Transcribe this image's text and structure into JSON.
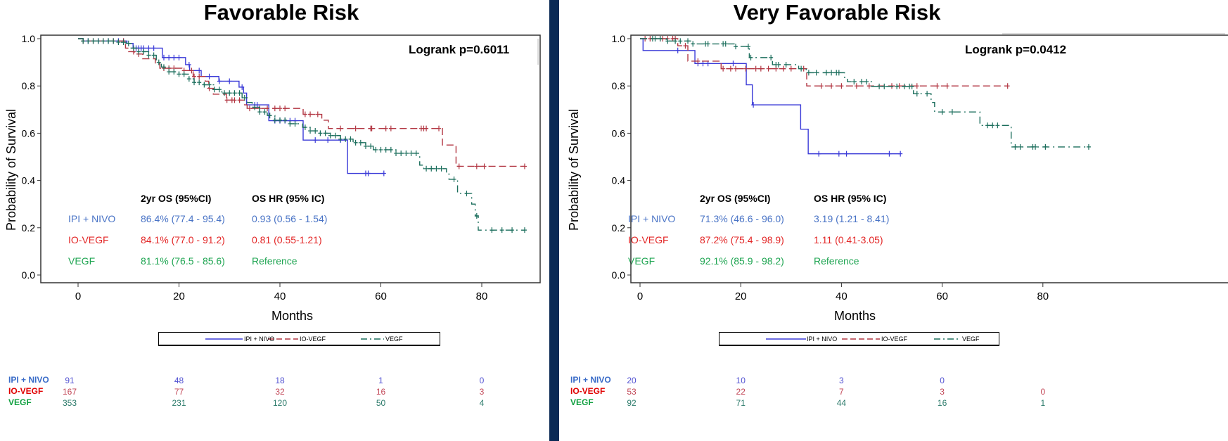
{
  "colors": {
    "divider": "#0b2a55",
    "ipi_curve": "#3b3bd8",
    "io_curve": "#b23642",
    "vegf_curve": "#1b6e5c",
    "ipi_text": "#4a74c6",
    "io_text": "#e32626",
    "vegf_text": "#1fa552",
    "ipi_risk": "#5252d2",
    "io_risk": "#c24656",
    "vegf_risk": "#2b7a6a",
    "ipi_label": "#3a6cc8",
    "io_label": "#e00000",
    "vegf_label": "#10a040"
  },
  "chart_data": [
    {
      "type": "line",
      "subtype": "kaplan-meier",
      "title": "Favorable Risk",
      "xlabel": "Months",
      "ylabel": "Probability of Survival",
      "xlim": [
        0,
        90
      ],
      "ylim": [
        0,
        1
      ],
      "xticks": [
        "0",
        "20",
        "40",
        "60",
        "80"
      ],
      "yticks": [
        "0.0",
        "0.2",
        "0.4",
        "0.6",
        "0.8",
        "1.0"
      ],
      "grid": false,
      "logrank": "Logrank p=0.6011",
      "legend_position": "bottom",
      "series": [
        {
          "name": "IPI + NIVO",
          "style": "solid",
          "end": 60.6,
          "steps": [
            [
              0,
              1.0
            ],
            [
              1,
              0.99
            ],
            [
              9.7,
              0.98
            ],
            [
              10.9,
              0.96
            ],
            [
              16.7,
              0.92
            ],
            [
              21.3,
              0.89
            ],
            [
              22.1,
              0.865
            ],
            [
              24.4,
              0.84
            ],
            [
              27.9,
              0.82
            ],
            [
              31.9,
              0.795
            ],
            [
              32.8,
              0.77
            ],
            [
              33.4,
              0.72
            ],
            [
              37.8,
              0.653
            ],
            [
              44.6,
              0.571
            ],
            [
              53.4,
              0.43
            ]
          ],
          "censors": [
            2,
            4,
            6,
            8,
            9,
            11.5,
            12,
            12.5,
            13,
            14,
            15,
            17,
            18,
            19,
            20,
            22,
            24,
            26,
            28,
            30,
            32.5,
            35,
            35.5,
            39,
            40,
            41,
            42,
            43,
            47,
            49.5,
            52,
            57,
            57.5,
            60.6
          ]
        },
        {
          "name": "IO-VEGF",
          "style": "dashed",
          "end": 88.5,
          "steps": [
            [
              0,
              1.0
            ],
            [
              1,
              0.99
            ],
            [
              9.4,
              0.96
            ],
            [
              10,
              0.945
            ],
            [
              11.2,
              0.935
            ],
            [
              12.8,
              0.915
            ],
            [
              15.3,
              0.895
            ],
            [
              16.2,
              0.875
            ],
            [
              20.6,
              0.865
            ],
            [
              22.8,
              0.84
            ],
            [
              25.2,
              0.82
            ],
            [
              25.9,
              0.79
            ],
            [
              26.8,
              0.765
            ],
            [
              29.4,
              0.74
            ],
            [
              33,
              0.72
            ],
            [
              33.5,
              0.705
            ],
            [
              44.6,
              0.68
            ],
            [
              48.3,
              0.655
            ],
            [
              49.6,
              0.62
            ],
            [
              72.2,
              0.55
            ],
            [
              74.9,
              0.46
            ]
          ],
          "censors": [
            1,
            3,
            5,
            7,
            9,
            11,
            12,
            17,
            18,
            19,
            21,
            22.5,
            23,
            24,
            26,
            29.5,
            30.5,
            31,
            32,
            34,
            36,
            37.5,
            39,
            40,
            41,
            45,
            46,
            47.5,
            52,
            55,
            58,
            58.2,
            61,
            62,
            68,
            68.5,
            69,
            71.5,
            75.5,
            79,
            80.5,
            88.5
          ]
        },
        {
          "name": "VEGF",
          "style": "dashdot",
          "end": 88.5,
          "steps": [
            [
              0,
              1.0
            ],
            [
              1,
              0.99
            ],
            [
              8,
              0.985
            ],
            [
              9.5,
              0.98
            ],
            [
              10.5,
              0.96
            ],
            [
              12,
              0.945
            ],
            [
              14,
              0.93
            ],
            [
              15.5,
              0.9
            ],
            [
              16.5,
              0.88
            ],
            [
              18,
              0.86
            ],
            [
              20,
              0.85
            ],
            [
              22,
              0.83
            ],
            [
              23,
              0.815
            ],
            [
              25,
              0.805
            ],
            [
              27,
              0.785
            ],
            [
              28.5,
              0.77
            ],
            [
              32.5,
              0.75
            ],
            [
              33.5,
              0.73
            ],
            [
              34.5,
              0.71
            ],
            [
              36,
              0.69
            ],
            [
              37.5,
              0.675
            ],
            [
              39,
              0.655
            ],
            [
              42,
              0.64
            ],
            [
              44.5,
              0.625
            ],
            [
              46,
              0.61
            ],
            [
              48,
              0.6
            ],
            [
              50,
              0.59
            ],
            [
              52,
              0.575
            ],
            [
              54.5,
              0.56
            ],
            [
              57,
              0.545
            ],
            [
              58.5,
              0.53
            ],
            [
              63,
              0.515
            ],
            [
              67.7,
              0.465
            ],
            [
              68.5,
              0.45
            ],
            [
              73,
              0.43
            ],
            [
              73.5,
              0.405
            ],
            [
              75.2,
              0.345
            ],
            [
              78,
              0.3
            ],
            [
              78.7,
              0.25
            ],
            [
              79.3,
              0.19
            ]
          ],
          "censors": [
            1,
            2,
            3,
            4,
            5,
            6,
            7,
            8,
            9,
            10,
            11,
            12,
            13,
            14,
            15,
            16,
            17,
            18,
            19,
            20,
            21,
            22,
            23,
            24,
            25,
            26,
            27,
            28,
            29,
            30,
            31,
            32,
            33,
            35,
            36,
            37,
            38,
            39,
            40,
            41,
            42,
            43,
            45,
            46,
            47,
            48,
            49,
            50,
            51,
            52,
            53,
            54,
            55,
            56,
            57,
            58,
            59,
            60,
            61,
            62,
            63,
            64,
            65,
            66,
            67,
            69,
            70,
            71,
            72,
            74.5,
            77,
            79,
            82,
            84,
            86,
            88.5
          ]
        }
      ],
      "stats": {
        "headers": [
          "2yr OS (95%CI)",
          "OS HR (95% IC)"
        ],
        "rows": [
          {
            "label": "IPI + NIVO",
            "os": "86.4% (77.4 - 95.4)",
            "hr": "0.93 (0.56 - 1.54)"
          },
          {
            "label": "IO-VEGF",
            "os": "84.1% (77.0 - 91.2)",
            "hr": "0.81 (0.55-1.21)"
          },
          {
            "label": "VEGF",
            "os": "81.1% (76.5 - 85.6)",
            "hr": "Reference"
          }
        ]
      },
      "risk_table": [
        {
          "label": "IPI + NIVO",
          "values": [
            "91",
            "48",
            "18",
            "1",
            "0"
          ]
        },
        {
          "label": "IO-VEGF",
          "values": [
            "167",
            "77",
            "32",
            "16",
            "3"
          ]
        },
        {
          "label": "VEGF",
          "values": [
            "353",
            "231",
            "120",
            "50",
            "4"
          ]
        }
      ]
    },
    {
      "type": "line",
      "subtype": "kaplan-meier",
      "title": "Very Favorable Risk",
      "xlabel": "Months",
      "ylabel": "Probability of Survival",
      "xlim": [
        0,
        90
      ],
      "ylim": [
        0,
        1
      ],
      "xticks": [
        "0",
        "20",
        "40",
        "60",
        "80"
      ],
      "yticks": [
        "0.0",
        "0.2",
        "0.4",
        "0.6",
        "0.8",
        "1.0"
      ],
      "grid": false,
      "logrank": "Logrank p=0.0412",
      "legend_position": "bottom",
      "series": [
        {
          "name": "IPI + NIVO",
          "style": "solid",
          "end": 51.7,
          "steps": [
            [
              0,
              1.0
            ],
            [
              0.6,
              0.95
            ],
            [
              10.9,
              0.895
            ],
            [
              21.1,
              0.805
            ],
            [
              22.3,
              0.72
            ],
            [
              31.9,
              0.617
            ],
            [
              33.4,
              0.513
            ]
          ],
          "censors": [
            7.5,
            11.5,
            12.5,
            13.5,
            18.5,
            22.5,
            35.5,
            39.5,
            41,
            49.5,
            51.7
          ]
        },
        {
          "name": "IO-VEGF",
          "style": "dashed",
          "end": 73,
          "steps": [
            [
              0,
              1.0
            ],
            [
              7.5,
              0.97
            ],
            [
              9.5,
              0.905
            ],
            [
              16.1,
              0.873
            ],
            [
              33.1,
              0.8
            ]
          ],
          "censors": [
            1,
            2,
            4,
            4.5,
            5.5,
            6.5,
            7,
            9,
            11.5,
            16.5,
            18,
            19,
            21,
            23,
            24,
            25.5,
            27,
            28.5,
            30,
            32.5,
            36,
            38,
            40,
            43,
            45.5,
            50,
            51.5,
            55,
            59,
            61,
            73
          ]
        },
        {
          "name": "VEGF",
          "style": "dashdot",
          "end": 89.1,
          "steps": [
            [
              0,
              1.0
            ],
            [
              5.2,
              0.99
            ],
            [
              10.4,
              0.978
            ],
            [
              18.8,
              0.967
            ],
            [
              21.7,
              0.92
            ],
            [
              26.3,
              0.89
            ],
            [
              31.5,
              0.873
            ],
            [
              33,
              0.856
            ],
            [
              40.6,
              0.836
            ],
            [
              41.2,
              0.818
            ],
            [
              46,
              0.798
            ],
            [
              54.3,
              0.767
            ],
            [
              57.8,
              0.73
            ],
            [
              58.5,
              0.69
            ],
            [
              67.5,
              0.633
            ],
            [
              73.7,
              0.542
            ]
          ],
          "censors": [
            2.5,
            3,
            4,
            5.5,
            7,
            8,
            9.5,
            10.5,
            13,
            13.5,
            16.5,
            17,
            19,
            21.5,
            22,
            26,
            27,
            27.5,
            29,
            32,
            33.5,
            35,
            37,
            38,
            39,
            39.5,
            42.5,
            44,
            45,
            47.5,
            48.5,
            51,
            52.5,
            53.5,
            54,
            55,
            57,
            60,
            62,
            69,
            70,
            71,
            74.5,
            75.5,
            78,
            78.5,
            80.5,
            89.1
          ]
        }
      ],
      "stats": {
        "headers": [
          "2yr OS (95%CI)",
          "OS HR (95% IC)"
        ],
        "rows": [
          {
            "label": "IPI + NIVO",
            "os": "71.3% (46.6 - 96.0)",
            "hr": "3.19 (1.21 - 8.41)"
          },
          {
            "label": "IO-VEGF",
            "os": "87.2% (75.4 - 98.9)",
            "hr": "1.11 (0.41-3.05)"
          },
          {
            "label": "VEGF",
            "os": "92.1% (85.9 - 98.2)",
            "hr": "Reference"
          }
        ]
      },
      "risk_table": [
        {
          "label": "IPI + NIVO",
          "values": [
            "20",
            "10",
            "3",
            "0",
            null
          ]
        },
        {
          "label": "IO-VEGF",
          "values": [
            "53",
            "22",
            "7",
            "3",
            "0"
          ]
        },
        {
          "label": "VEGF",
          "values": [
            "92",
            "71",
            "44",
            "16",
            "1"
          ]
        }
      ]
    }
  ]
}
